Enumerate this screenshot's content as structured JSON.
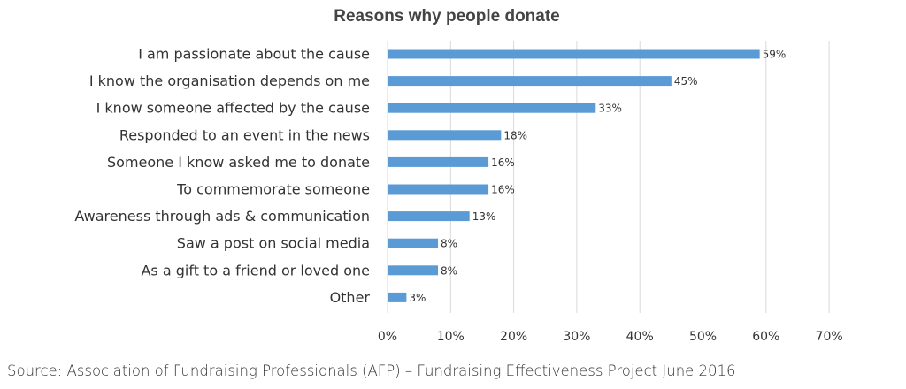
{
  "chart_data": {
    "type": "bar",
    "orientation": "horizontal",
    "title": "Reasons why people donate",
    "categories": [
      "I am passionate about the cause",
      "I know the organisation depends on me",
      "I know someone affected by the cause",
      "Responded to an event in the news",
      "Someone I know asked me to donate",
      "To commemorate someone",
      "Awareness through ads & communication",
      "Saw a post on social media",
      "As a gift to a friend or loved one",
      "Other"
    ],
    "values": [
      59,
      45,
      33,
      18,
      16,
      16,
      13,
      8,
      8,
      3
    ],
    "data_labels": [
      "59%",
      "45%",
      "33%",
      "18%",
      "16%",
      "16%",
      "13%",
      "8%",
      "8%",
      "3%"
    ],
    "x_ticks": [
      0,
      10,
      20,
      30,
      40,
      50,
      60,
      70
    ],
    "x_tick_labels": [
      "0%",
      "10%",
      "20%",
      "30%",
      "40%",
      "50%",
      "60%",
      "70%"
    ],
    "xlim": [
      0,
      70
    ],
    "grid": true,
    "bar_color": "#5b9bd5",
    "grid_color": "#d9d9d9"
  },
  "source": "Source: Association of Fundraising Professionals (AFP) – Fundraising Effectiveness Project June 2016"
}
